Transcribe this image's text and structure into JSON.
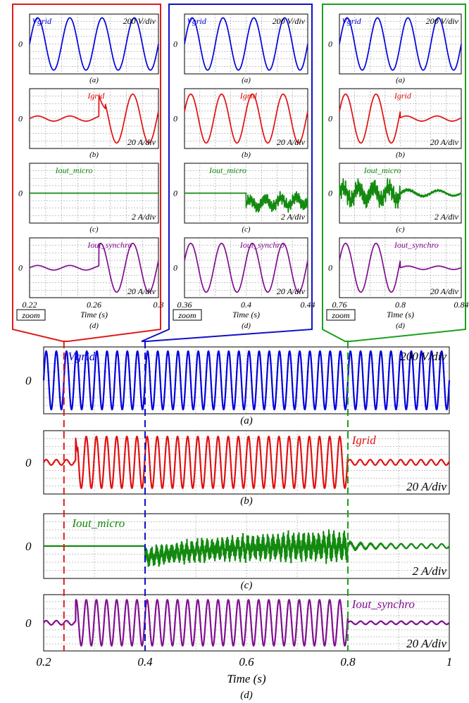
{
  "colors": {
    "vgrid": "#0000dd",
    "igrid": "#e01010",
    "micro": "#138a0f",
    "synchro": "#800f8f",
    "zoom_red": "#e01a1a",
    "zoom_blue": "#1010c8",
    "zoom_green": "#1aa01a",
    "grid": "#888888"
  },
  "common": {
    "zero": "0",
    "zoom": "zoom",
    "time_label": "Time (s)"
  },
  "chart_data": [
    {
      "type": "line",
      "name": "main",
      "xlim": [
        0.2,
        1.0
      ],
      "xticks": [
        "0.2",
        "0.4",
        "0.6",
        "0.8",
        "1"
      ],
      "xlabel": "Time (s)",
      "caption": "(d)",
      "events": [
        0.24,
        0.4,
        0.8
      ],
      "panels": [
        {
          "signal": "Vgrid",
          "label": "Vgrid",
          "scale": "200 V/div",
          "caption": "(a)"
        },
        {
          "signal": "Igrid",
          "label": "Igrid",
          "scale": "20 A/div",
          "caption": "(b)"
        },
        {
          "signal": "Iout_micro",
          "label": "Iout_micro",
          "scale": "2 A/div",
          "caption": "(c)"
        },
        {
          "signal": "Iout_synchro",
          "label": "Iout_synchro",
          "scale": "20 A/div",
          "caption": ""
        }
      ]
    },
    {
      "type": "line",
      "name": "zoom-1",
      "xlim": [
        0.22,
        0.3
      ],
      "xticks": [
        "0.22",
        "0.26",
        "0.3"
      ],
      "xlabel": "Time (s)",
      "caption": "(d)",
      "zoom_button": "zoom",
      "panels": [
        {
          "signal": "Vgrid",
          "label": "Vgrid",
          "scale": "200 V/div",
          "caption": "(a)"
        },
        {
          "signal": "Igrid",
          "label": "Igrid",
          "scale": "20 A/div",
          "caption": "(b)"
        },
        {
          "signal": "Iout_micro",
          "label": "Iout_micro",
          "scale": "2 A/div",
          "caption": "(c)"
        },
        {
          "signal": "Iout_synchro",
          "label": "Iout_synchro",
          "scale": "20 A/div",
          "caption": ""
        }
      ]
    },
    {
      "type": "line",
      "name": "zoom-2",
      "xlim": [
        0.36,
        0.44
      ],
      "xticks": [
        "0.36",
        "0.4",
        "0.44"
      ],
      "xlabel": "Time (s)",
      "caption": "(d)",
      "zoom_button": "zoom",
      "panels": [
        {
          "signal": "Vgrid",
          "label": "Vgrid",
          "scale": "200 V/div",
          "caption": "(a)"
        },
        {
          "signal": "Igrid",
          "label": "Igrid",
          "scale": "20 A/div",
          "caption": "(b)"
        },
        {
          "signal": "Iout_micro",
          "label": "Iout_micro",
          "scale": "2 A/div",
          "caption": "(c)"
        },
        {
          "signal": "Iout_synchro",
          "label": "Iout_synchro",
          "scale": "20 A/div",
          "caption": ""
        }
      ]
    },
    {
      "type": "line",
      "name": "zoom-3",
      "xlim": [
        0.76,
        0.84
      ],
      "xticks": [
        "0.76",
        "0.8",
        "0.84"
      ],
      "xlabel": "Time (s)",
      "caption": "(d)",
      "zoom_button": "zoom",
      "panels": [
        {
          "signal": "Vgrid",
          "label": "Vgrid",
          "scale": "200 V/div",
          "caption": "(a)"
        },
        {
          "signal": "Igrid",
          "label": "Igrid",
          "scale": "20 A/div",
          "caption": "(b)"
        },
        {
          "signal": "Iout_micro",
          "label": "Iout_micro",
          "scale": "2 A/div",
          "caption": "(c)"
        },
        {
          "signal": "Iout_synchro",
          "label": "Iout_synchro",
          "scale": "20 A/div",
          "caption": ""
        }
      ]
    }
  ]
}
